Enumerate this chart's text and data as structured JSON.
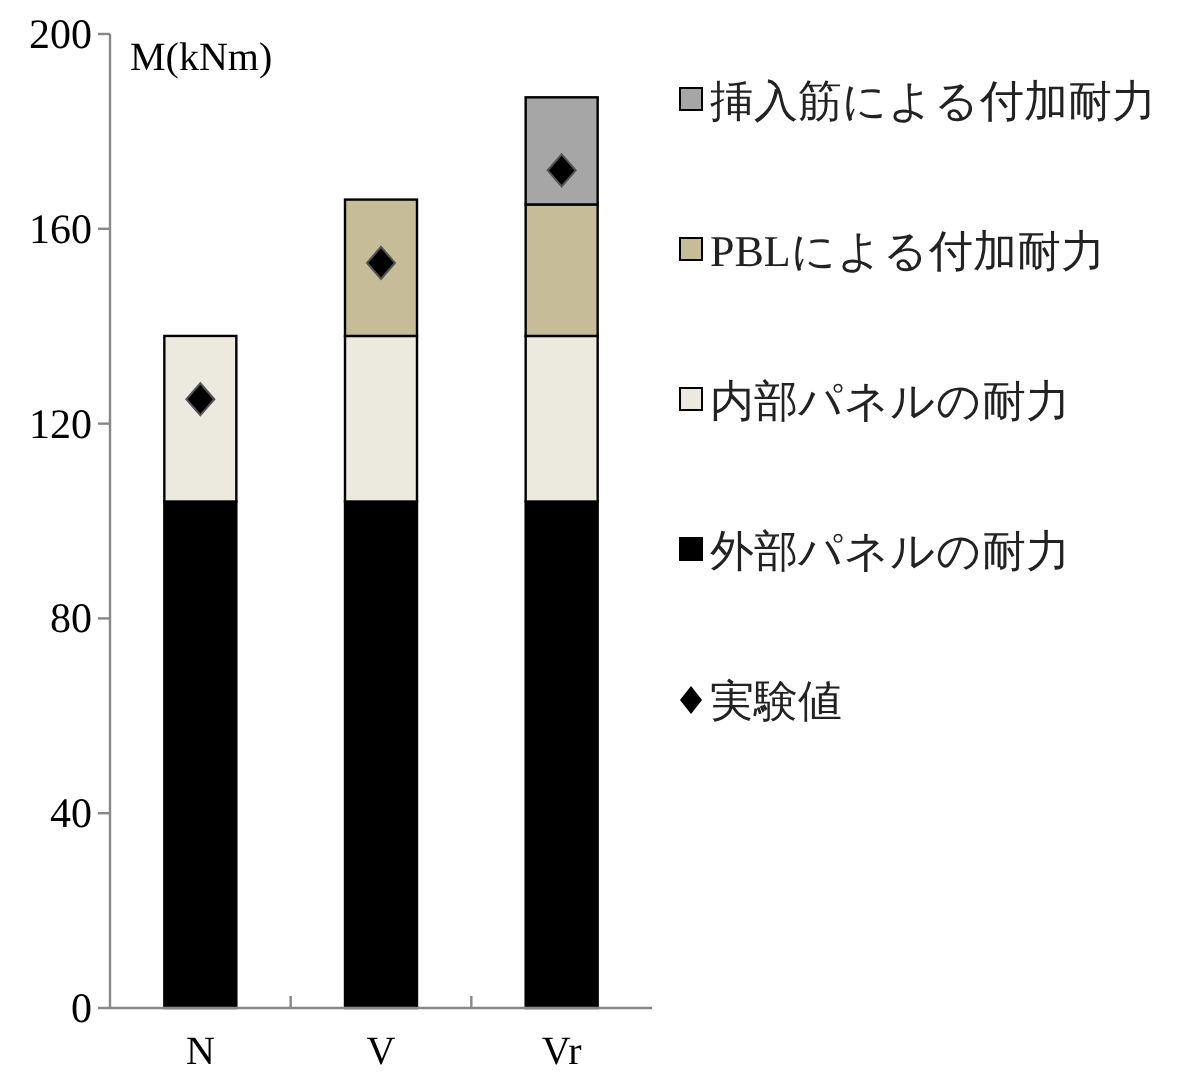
{
  "chart_data": {
    "type": "bar",
    "stacked": true,
    "ylabel": "M(kNm)",
    "categories": [
      "N",
      "V",
      "Vr"
    ],
    "ylim": [
      0,
      200
    ],
    "yticks": [
      0,
      40,
      80,
      120,
      160,
      200
    ],
    "grid": false,
    "legend": "right",
    "series": [
      {
        "name": "外部パネルの耐力",
        "color": "#000000",
        "values": [
          104,
          104,
          104
        ]
      },
      {
        "name": "内部パネルの耐力",
        "color": "#eceadf",
        "values": [
          34,
          34,
          34
        ]
      },
      {
        "name": "PBLによる付加耐力",
        "color": "#c6bd98",
        "values": [
          null,
          28,
          27
        ]
      },
      {
        "name": "挿入筋による付加耐力",
        "color": "#a6a6a6",
        "values": [
          null,
          null,
          22
        ]
      },
      {
        "name": "実験値",
        "type": "scatter",
        "marker": "diamond",
        "color": "#000000",
        "values": [
          125,
          153,
          172
        ]
      }
    ]
  }
}
